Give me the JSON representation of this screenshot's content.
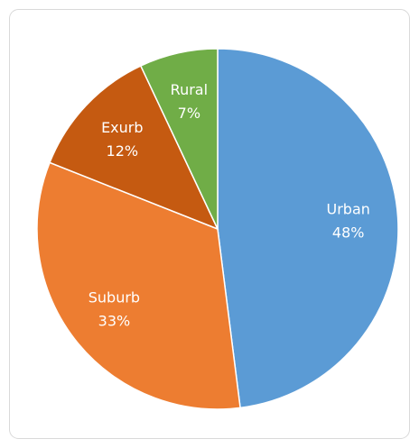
{
  "chart_data": {
    "type": "pie",
    "categories": [
      "Urban",
      "Suburb",
      "Exurb",
      "Rural"
    ],
    "values": [
      48,
      33,
      12,
      7
    ],
    "value_labels": [
      "48%",
      "33%",
      "12%",
      "7%"
    ],
    "colors": [
      "#5b9bd5",
      "#ed7d31",
      "#c55a11",
      "#70ad47"
    ]
  }
}
